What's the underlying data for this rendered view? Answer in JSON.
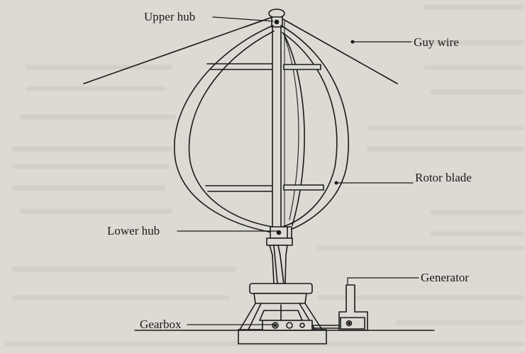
{
  "labels": {
    "upper_hub": "Upper hub",
    "guy_wire": "Guy wire",
    "rotor_blade": "Rotor blade",
    "lower_hub": "Lower hub",
    "generator": "Generator",
    "gearbox": "Gearbox"
  },
  "colors": {
    "paper": "#dcdad3",
    "ink": "#1a1a1a",
    "faint_text": "#c9c6bd"
  }
}
